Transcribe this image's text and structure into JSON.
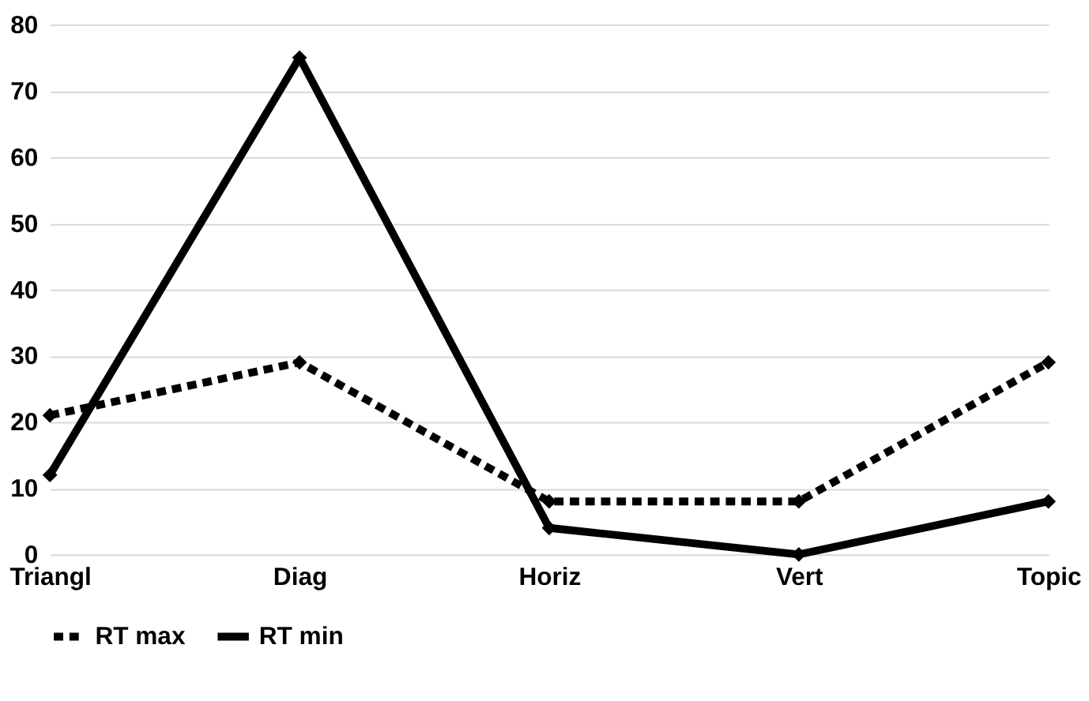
{
  "chart_data": {
    "type": "line",
    "categories": [
      "Triangl",
      "Diag",
      "Horiz",
      "Vert",
      "Topic"
    ],
    "series": [
      {
        "name": "RT max",
        "color": "#000000",
        "values": [
          21,
          29,
          8,
          8,
          29
        ],
        "line_style": "dotted"
      },
      {
        "name": "RT min",
        "color": "#000000",
        "values": [
          12,
          75,
          4,
          0,
          8
        ],
        "line_style": "solid"
      }
    ],
    "ylim": [
      0,
      80
    ],
    "yticks": [
      0,
      10,
      20,
      30,
      40,
      50,
      60,
      70,
      80
    ],
    "grid": "y",
    "legend": "bottom",
    "marker": "diamond"
  }
}
